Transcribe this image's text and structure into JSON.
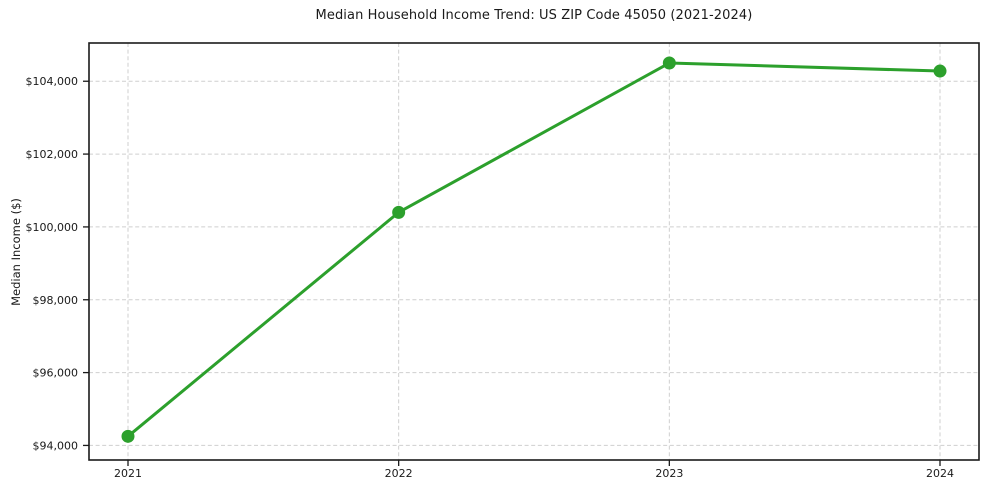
{
  "chart_data": {
    "type": "line",
    "title": "Median Household Income Trend: US ZIP Code 45050 (2021-2024)",
    "xlabel": "",
    "ylabel": "Median Income ($)",
    "categories": [
      "2021",
      "2022",
      "2023",
      "2024"
    ],
    "values": [
      94250,
      100400,
      104500,
      104280
    ],
    "ylim": [
      93600,
      105050
    ],
    "yticks": [
      94000,
      96000,
      98000,
      100000,
      102000,
      104000
    ],
    "ytick_labels": [
      "$94,000",
      "$96,000",
      "$98,000",
      "$100,000",
      "$102,000",
      "$104,000"
    ],
    "grid": true,
    "grid_style": "dashed",
    "legend_position": "none",
    "line_color": "#2ca02c",
    "marker": "circle",
    "grid_color": "#cfcfcf",
    "frame_color": "#1a1a1a",
    "text_color": "#1a1a1a",
    "background_color": "#ffffff"
  }
}
